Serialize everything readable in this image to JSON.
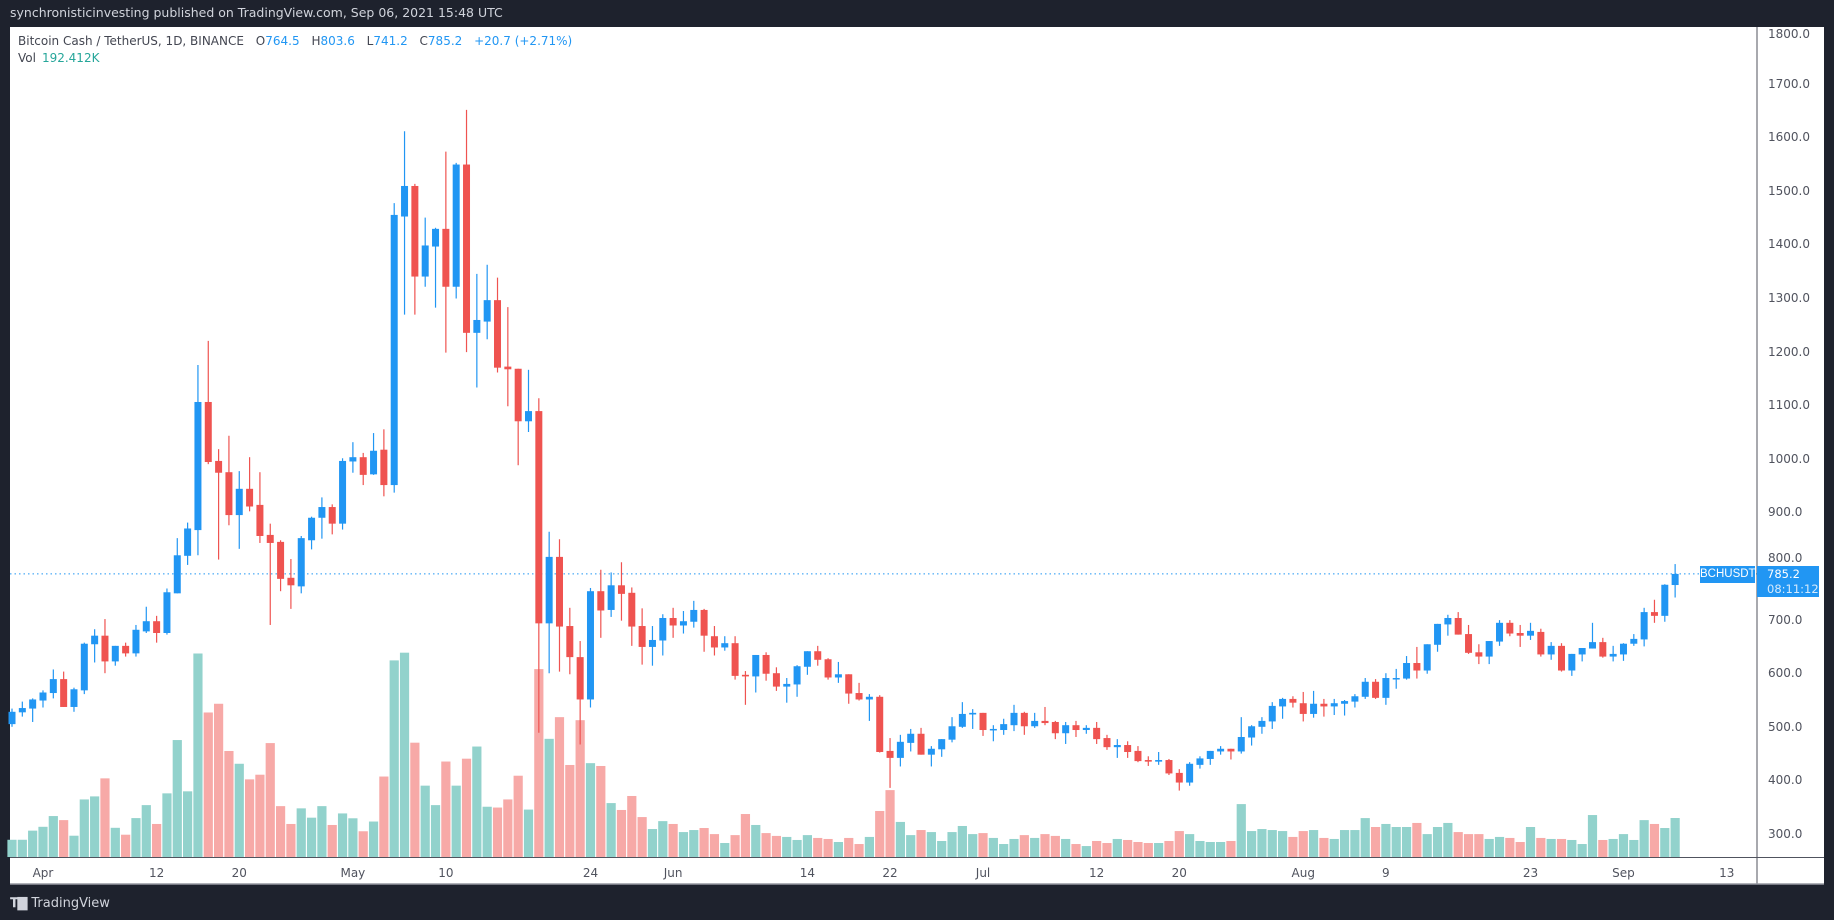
{
  "header": {
    "published": "synchronisticinvesting published on TradingView.com, Sep 06, 2021 15:48 UTC"
  },
  "legend": {
    "symbol": "Bitcoin Cash / TetherUS, 1D, BINANCE",
    "o_label": "O",
    "o_value": "764.5",
    "h_label": "H",
    "h_value": "803.6",
    "l_label": "L",
    "l_value": "741.2",
    "c_label": "C",
    "c_value": "785.2",
    "change": "+20.7 (+2.71%)",
    "vol_label": "Vol",
    "vol_value": "192.412K"
  },
  "tags": {
    "symbol": "BCHUSDT",
    "price": "785.2",
    "countdown": "08:11:12"
  },
  "footer": {
    "brand": "TradingView"
  },
  "colors": {
    "up": "#2196f3",
    "down": "#ef5350",
    "vol_up": "#92d2cc",
    "vol_down": "#f7a9a7",
    "last_price_line": "#2196f3"
  },
  "chart_data": {
    "type": "candlestick",
    "title": "Bitcoin Cash / TetherUS, 1D, BINANCE",
    "ylim": [
      250,
      1810
    ],
    "last_price": 785.2,
    "y_ticks": [
      {
        "v": 1800,
        "label": "1800.0"
      },
      {
        "v": 1700,
        "label": "1700.0"
      },
      {
        "v": 1600,
        "label": "1600.0"
      },
      {
        "v": 1500,
        "label": "1500.0"
      },
      {
        "v": 1400,
        "label": "1400.0"
      },
      {
        "v": 1300,
        "label": "1300.0"
      },
      {
        "v": 1200,
        "label": "1200.0"
      },
      {
        "v": 1100,
        "label": "1100.0"
      },
      {
        "v": 1000,
        "label": "1000.0"
      },
      {
        "v": 900,
        "label": "900.0"
      },
      {
        "v": 800,
        "label": "800.0"
      },
      {
        "v": 700,
        "label": "700.0"
      },
      {
        "v": 600,
        "label": "600.0"
      },
      {
        "v": 500,
        "label": "500.0"
      },
      {
        "v": 400,
        "label": "400.0"
      },
      {
        "v": 300,
        "label": "300.0"
      }
    ],
    "x_ticks": [
      {
        "i": 3,
        "label": "Apr"
      },
      {
        "i": 14,
        "label": "12"
      },
      {
        "i": 22,
        "label": "20"
      },
      {
        "i": 33,
        "label": "May"
      },
      {
        "i": 42,
        "label": "10"
      },
      {
        "i": 56,
        "label": "24"
      },
      {
        "i": 64,
        "label": "Jun"
      },
      {
        "i": 77,
        "label": "14"
      },
      {
        "i": 85,
        "label": "22"
      },
      {
        "i": 94,
        "label": "Jul"
      },
      {
        "i": 105,
        "label": "12"
      },
      {
        "i": 113,
        "label": "20"
      },
      {
        "i": 125,
        "label": "Aug"
      },
      {
        "i": 133,
        "label": "9"
      },
      {
        "i": 147,
        "label": "23"
      },
      {
        "i": 156,
        "label": "Sep"
      },
      {
        "i": 166,
        "label": "13"
      }
    ],
    "volume_unit": "K",
    "ohlcv": [
      [
        505,
        534,
        500,
        528,
        85
      ],
      [
        527,
        547,
        519,
        535,
        85
      ],
      [
        534,
        553,
        509,
        551,
        130
      ],
      [
        549,
        568,
        536,
        564,
        149
      ],
      [
        563,
        607,
        553,
        589,
        202
      ],
      [
        589,
        603,
        537,
        537,
        182
      ],
      [
        537,
        573,
        528,
        570,
        105
      ],
      [
        568,
        657,
        561,
        655,
        284
      ],
      [
        654,
        682,
        620,
        670,
        299
      ],
      [
        670,
        701,
        600,
        622,
        388
      ],
      [
        622,
        651,
        614,
        651,
        144
      ],
      [
        651,
        657,
        631,
        637,
        110
      ],
      [
        637,
        690,
        631,
        681,
        192
      ],
      [
        678,
        724,
        675,
        697,
        256
      ],
      [
        697,
        707,
        657,
        675,
        163
      ],
      [
        675,
        758,
        672,
        751,
        314
      ],
      [
        749,
        852,
        749,
        820,
        577
      ],
      [
        819,
        881,
        802,
        870,
        324
      ],
      [
        867,
        1175,
        820,
        1106,
        1004
      ],
      [
        1106,
        1220,
        990,
        994,
        713
      ],
      [
        996,
        1018,
        812,
        974,
        756
      ],
      [
        975,
        1043,
        876,
        895,
        523
      ],
      [
        895,
        977,
        832,
        944,
        460
      ],
      [
        944,
        1003,
        902,
        911,
        383
      ],
      [
        914,
        975,
        843,
        856,
        406
      ],
      [
        858,
        879,
        690,
        843,
        562
      ],
      [
        845,
        848,
        753,
        776,
        251
      ],
      [
        778,
        813,
        720,
        764,
        163
      ],
      [
        762,
        856,
        749,
        852,
        240
      ],
      [
        848,
        892,
        831,
        890,
        194
      ],
      [
        890,
        928,
        851,
        910,
        251
      ],
      [
        910,
        915,
        859,
        879,
        158
      ],
      [
        879,
        1001,
        868,
        996,
        215
      ],
      [
        995,
        1031,
        974,
        1003,
        191
      ],
      [
        1003,
        1011,
        951,
        970,
        127
      ],
      [
        971,
        1048,
        970,
        1015,
        175
      ],
      [
        1017,
        1055,
        930,
        951,
        397
      ],
      [
        951,
        1477,
        937,
        1455,
        970
      ],
      [
        1452,
        1611,
        1269,
        1509,
        1008
      ],
      [
        1509,
        1513,
        1269,
        1340,
        564
      ],
      [
        1340,
        1450,
        1321,
        1398,
        352
      ],
      [
        1396,
        1431,
        1282,
        1429,
        256
      ],
      [
        1429,
        1573,
        1198,
        1321,
        471
      ],
      [
        1321,
        1552,
        1299,
        1549,
        352
      ],
      [
        1549,
        1651,
        1199,
        1235,
        485
      ],
      [
        1235,
        1345,
        1133,
        1259,
        545
      ],
      [
        1256,
        1362,
        1223,
        1296,
        248
      ],
      [
        1296,
        1338,
        1161,
        1170,
        244
      ],
      [
        1172,
        1283,
        1098,
        1167,
        284
      ],
      [
        1168,
        1168,
        988,
        1070,
        401
      ],
      [
        1070,
        1166,
        1050,
        1089,
        234
      ],
      [
        1089,
        1113,
        489,
        693,
        927
      ],
      [
        693,
        864,
        600,
        817,
        583
      ],
      [
        817,
        850,
        603,
        687,
        690
      ],
      [
        688,
        722,
        598,
        630,
        454
      ],
      [
        630,
        660,
        467,
        551,
        675
      ],
      [
        551,
        759,
        536,
        753,
        463
      ],
      [
        753,
        793,
        666,
        717,
        449
      ],
      [
        718,
        788,
        705,
        764,
        266
      ],
      [
        764,
        807,
        698,
        748,
        232
      ],
      [
        750,
        760,
        651,
        687,
        301
      ],
      [
        688,
        721,
        616,
        649,
        197
      ],
      [
        649,
        688,
        614,
        662,
        138
      ],
      [
        661,
        710,
        633,
        703,
        177
      ],
      [
        703,
        722,
        666,
        689,
        163
      ],
      [
        689,
        716,
        674,
        697,
        123
      ],
      [
        696,
        735,
        685,
        718,
        133
      ],
      [
        718,
        720,
        640,
        670,
        143
      ],
      [
        669,
        688,
        633,
        648,
        113
      ],
      [
        648,
        669,
        642,
        656,
        69
      ],
      [
        656,
        669,
        588,
        595,
        108
      ],
      [
        597,
        604,
        541,
        594,
        212
      ],
      [
        594,
        634,
        564,
        634,
        158
      ],
      [
        634,
        639,
        586,
        599,
        118
      ],
      [
        600,
        611,
        567,
        575,
        104
      ],
      [
        575,
        591,
        545,
        580,
        99
      ],
      [
        579,
        615,
        556,
        613,
        84
      ],
      [
        612,
        641,
        597,
        641,
        108
      ],
      [
        641,
        651,
        614,
        625,
        94
      ],
      [
        626,
        628,
        588,
        592,
        89
      ],
      [
        592,
        621,
        582,
        598,
        74
      ],
      [
        598,
        598,
        543,
        562,
        94
      ],
      [
        563,
        582,
        549,
        551,
        64
      ],
      [
        551,
        561,
        511,
        556,
        99
      ],
      [
        556,
        559,
        452,
        453,
        227
      ],
      [
        455,
        479,
        386,
        442,
        330
      ],
      [
        442,
        485,
        426,
        472,
        173
      ],
      [
        470,
        496,
        454,
        487,
        108
      ],
      [
        487,
        498,
        448,
        448,
        133
      ],
      [
        448,
        464,
        426,
        459,
        123
      ],
      [
        458,
        477,
        444,
        477,
        79
      ],
      [
        476,
        518,
        471,
        501,
        123
      ],
      [
        500,
        546,
        498,
        524,
        153
      ],
      [
        523,
        533,
        496,
        526,
        113
      ],
      [
        526,
        526,
        483,
        494,
        118
      ],
      [
        494,
        503,
        473,
        496,
        94
      ],
      [
        494,
        515,
        485,
        505,
        64
      ],
      [
        503,
        541,
        492,
        526,
        89
      ],
      [
        526,
        528,
        485,
        501,
        108
      ],
      [
        501,
        526,
        498,
        511,
        94
      ],
      [
        511,
        537,
        503,
        507,
        113
      ],
      [
        509,
        511,
        477,
        488,
        104
      ],
      [
        488,
        509,
        468,
        503,
        89
      ],
      [
        503,
        511,
        481,
        494,
        64
      ],
      [
        494,
        503,
        487,
        498,
        54
      ],
      [
        498,
        509,
        468,
        477,
        79
      ],
      [
        479,
        485,
        457,
        462,
        69
      ],
      [
        462,
        477,
        442,
        466,
        89
      ],
      [
        466,
        473,
        442,
        453,
        84
      ],
      [
        455,
        464,
        434,
        436,
        74
      ],
      [
        438,
        445,
        427,
        435,
        69
      ],
      [
        435,
        453,
        429,
        438,
        69
      ],
      [
        438,
        440,
        410,
        413,
        79
      ],
      [
        414,
        421,
        381,
        396,
        128
      ],
      [
        396,
        434,
        390,
        431,
        113
      ],
      [
        429,
        445,
        422,
        441,
        79
      ],
      [
        440,
        455,
        429,
        455,
        74
      ],
      [
        454,
        464,
        448,
        459,
        74
      ],
      [
        459,
        459,
        439,
        454,
        79
      ],
      [
        454,
        518,
        450,
        481,
        261
      ],
      [
        480,
        503,
        465,
        501,
        128
      ],
      [
        500,
        518,
        487,
        511,
        138
      ],
      [
        510,
        546,
        496,
        539,
        133
      ],
      [
        538,
        554,
        515,
        552,
        128
      ],
      [
        552,
        557,
        536,
        545,
        99
      ],
      [
        544,
        565,
        510,
        524,
        128
      ],
      [
        524,
        567,
        517,
        543,
        133
      ],
      [
        543,
        552,
        519,
        538,
        94
      ],
      [
        538,
        552,
        522,
        544,
        89
      ],
      [
        543,
        550,
        521,
        548,
        133
      ],
      [
        547,
        561,
        536,
        557,
        133
      ],
      [
        556,
        591,
        552,
        584,
        192
      ],
      [
        584,
        589,
        552,
        554,
        148
      ],
      [
        554,
        600,
        541,
        591,
        163
      ],
      [
        590,
        608,
        571,
        591,
        148
      ],
      [
        590,
        632,
        588,
        619,
        148
      ],
      [
        619,
        649,
        590,
        605,
        168
      ],
      [
        605,
        654,
        599,
        654,
        113
      ],
      [
        653,
        692,
        640,
        692,
        148
      ],
      [
        691,
        709,
        670,
        703,
        168
      ],
      [
        703,
        714,
        672,
        672,
        123
      ],
      [
        673,
        690,
        636,
        638,
        113
      ],
      [
        639,
        654,
        617,
        631,
        113
      ],
      [
        631,
        660,
        617,
        660,
        89
      ],
      [
        659,
        699,
        651,
        694,
        99
      ],
      [
        694,
        699,
        669,
        674,
        94
      ],
      [
        675,
        690,
        649,
        670,
        74
      ],
      [
        670,
        694,
        662,
        679,
        148
      ],
      [
        677,
        683,
        631,
        635,
        94
      ],
      [
        635,
        658,
        625,
        651,
        89
      ],
      [
        651,
        656,
        603,
        605,
        89
      ],
      [
        605,
        636,
        595,
        636,
        84
      ],
      [
        635,
        647,
        622,
        647,
        64
      ],
      [
        646,
        694,
        646,
        658,
        207
      ],
      [
        658,
        666,
        629,
        631,
        84
      ],
      [
        631,
        651,
        622,
        636,
        89
      ],
      [
        635,
        656,
        623,
        655,
        113
      ],
      [
        655,
        673,
        651,
        664,
        84
      ],
      [
        663,
        722,
        650,
        714,
        182
      ],
      [
        714,
        737,
        694,
        707,
        163
      ],
      [
        707,
        766,
        696,
        765,
        143
      ],
      [
        764.5,
        803.6,
        741.2,
        785.2,
        192.412
      ]
    ]
  }
}
